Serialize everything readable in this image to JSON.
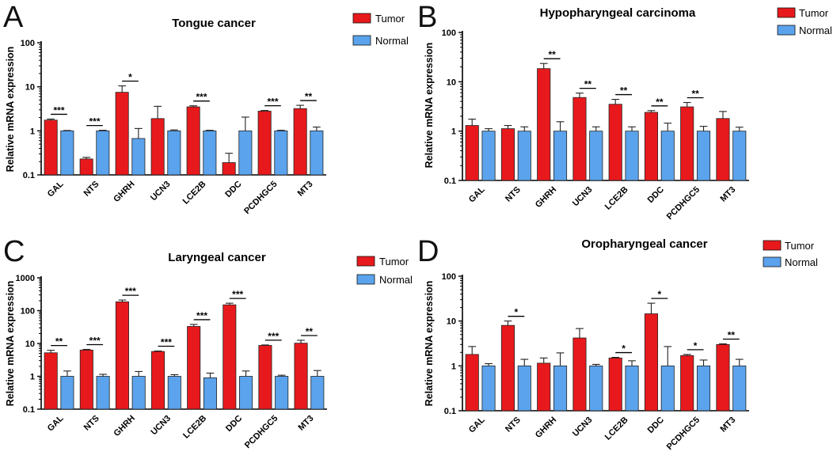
{
  "colors": {
    "tumor": "#e8191c",
    "normal": "#5ba3ec",
    "axis": "#000000"
  },
  "chart_data": [
    {
      "letter": "A",
      "type": "bar",
      "title": "Tongue cancer",
      "ylabel": "Relative mRNA expression",
      "yscale": "log",
      "ylim": [
        0.1,
        100
      ],
      "yticks": [
        "0.1",
        "1",
        "10",
        "100"
      ],
      "legend_placement": "top-right",
      "legend": [
        "Tumor",
        "Normal"
      ],
      "categories": [
        "GAL",
        "NTS",
        "GHRH",
        "UCN3",
        "LCE2B",
        "DDC",
        "PCDHGC5",
        "MT3"
      ],
      "series": [
        {
          "name": "Tumor",
          "values": [
            1.75,
            0.23,
            7.5,
            1.9,
            3.5,
            0.19,
            2.8,
            3.2
          ],
          "err_upper": [
            1.85,
            0.25,
            10.5,
            3.6,
            3.7,
            0.31,
            2.9,
            3.8
          ]
        },
        {
          "name": "Normal",
          "values": [
            1.0,
            1.0,
            0.67,
            1.0,
            1.0,
            1.0,
            1.0,
            1.0
          ],
          "err_upper": [
            1.02,
            1.03,
            1.13,
            1.05,
            1.03,
            2.05,
            1.03,
            1.22
          ]
        }
      ],
      "significance": [
        {
          "index": 0,
          "label": "***"
        },
        {
          "index": 1,
          "label": "***"
        },
        {
          "index": 2,
          "label": "*"
        },
        {
          "index": 4,
          "label": "***"
        },
        {
          "index": 6,
          "label": "***"
        },
        {
          "index": 7,
          "label": "**"
        }
      ]
    },
    {
      "letter": "B",
      "type": "bar",
      "title": "Hypopharyngeal carcinoma",
      "ylabel": "Relative mRNA expression",
      "yscale": "log",
      "ylim": [
        0.1,
        100
      ],
      "yticks": [
        "0.1",
        "1",
        "10",
        "100"
      ],
      "legend_placement": "top-right",
      "legend": [
        "Tumor",
        "Normal"
      ],
      "categories": [
        "GAL",
        "NTS",
        "GHRH",
        "UCN3",
        "LCE2B",
        "DDC",
        "PCDHGC5",
        "MT3"
      ],
      "series": [
        {
          "name": "Tumor",
          "values": [
            1.3,
            1.12,
            18.5,
            4.8,
            3.5,
            2.4,
            3.1,
            1.8
          ],
          "err_upper": [
            1.75,
            1.3,
            23.5,
            5.9,
            4.4,
            2.6,
            3.8,
            2.5
          ]
        },
        {
          "name": "Normal",
          "values": [
            1.0,
            1.0,
            1.0,
            1.0,
            1.0,
            1.0,
            1.0,
            1.0
          ],
          "err_upper": [
            1.12,
            1.22,
            1.55,
            1.22,
            1.22,
            1.45,
            1.25,
            1.2
          ]
        }
      ],
      "significance": [
        {
          "index": 2,
          "label": "**"
        },
        {
          "index": 3,
          "label": "**"
        },
        {
          "index": 4,
          "label": "**"
        },
        {
          "index": 5,
          "label": "**"
        },
        {
          "index": 6,
          "label": "**"
        }
      ]
    },
    {
      "letter": "C",
      "type": "bar",
      "title": "Laryngeal cancer",
      "ylabel": "Relative mRNA expression",
      "yscale": "log",
      "ylim": [
        0.1,
        1000
      ],
      "yticks": [
        "0.1",
        "1",
        "10",
        "100",
        "1000"
      ],
      "legend_placement": "top-right",
      "legend": [
        "Tumor",
        "Normal"
      ],
      "categories": [
        "GAL",
        "NTS",
        "GHRH",
        "UCN3",
        "LCE2B",
        "DDC",
        "PCDHGC5",
        "MT3"
      ],
      "series": [
        {
          "name": "Tumor",
          "values": [
            5.2,
            6.3,
            185,
            5.7,
            33,
            150,
            8.7,
            10.2
          ],
          "err_upper": [
            6.2,
            6.6,
            210,
            5.9,
            38,
            168,
            9.0,
            12.5
          ]
        },
        {
          "name": "Normal",
          "values": [
            1.0,
            1.0,
            1.0,
            1.0,
            0.9,
            1.0,
            1.0,
            1.0
          ],
          "err_upper": [
            1.45,
            1.15,
            1.4,
            1.12,
            1.25,
            1.45,
            1.08,
            1.5
          ]
        }
      ],
      "significance": [
        {
          "index": 0,
          "label": "**"
        },
        {
          "index": 1,
          "label": "***"
        },
        {
          "index": 2,
          "label": "***"
        },
        {
          "index": 3,
          "label": "***"
        },
        {
          "index": 4,
          "label": "***"
        },
        {
          "index": 5,
          "label": "***"
        },
        {
          "index": 6,
          "label": "***"
        },
        {
          "index": 7,
          "label": "**"
        }
      ]
    },
    {
      "letter": "D",
      "type": "bar",
      "title": "Oropharyngeal cancer",
      "ylabel": "Relative mRNA expression",
      "yscale": "log",
      "ylim": [
        0.1,
        100
      ],
      "yticks": [
        "0.1",
        "1",
        "10",
        "100"
      ],
      "legend_placement": "top-right",
      "legend": [
        "Tumor",
        "Normal"
      ],
      "categories": [
        "GAL",
        "NTS",
        "GHRH",
        "UCN3",
        "LCE2B",
        "DDC",
        "PCDHGC5",
        "MT3"
      ],
      "series": [
        {
          "name": "Tumor",
          "values": [
            1.8,
            8.0,
            1.15,
            4.2,
            1.5,
            14.5,
            1.7,
            3.0
          ],
          "err_upper": [
            2.7,
            10.0,
            1.5,
            6.8,
            1.55,
            25.0,
            1.8,
            3.1
          ]
        },
        {
          "name": "Normal",
          "values": [
            1.0,
            1.0,
            1.0,
            1.0,
            1.0,
            1.0,
            1.0,
            1.0
          ],
          "err_upper": [
            1.12,
            1.4,
            1.95,
            1.08,
            1.3,
            2.7,
            1.35,
            1.4
          ]
        }
      ],
      "significance": [
        {
          "index": 1,
          "label": "*"
        },
        {
          "index": 4,
          "label": "*"
        },
        {
          "index": 5,
          "label": "*"
        },
        {
          "index": 6,
          "label": "*"
        },
        {
          "index": 7,
          "label": "**"
        }
      ]
    }
  ]
}
